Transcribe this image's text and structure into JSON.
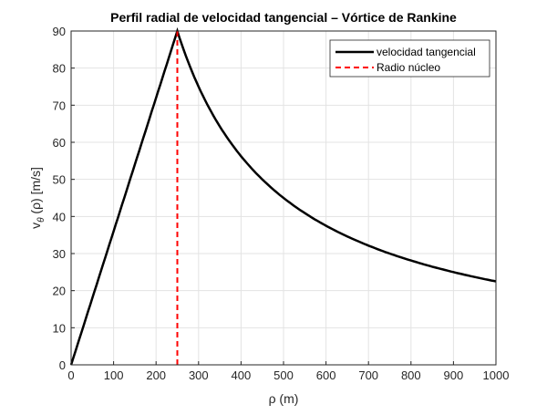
{
  "chart_data": {
    "type": "line",
    "title": "Perfil radial de velocidad tangencial – Vórtice de Rankine",
    "xlabel": "ρ (m)",
    "ylabel": {
      "main": "v",
      "sub": "θ",
      "rest": " (ρ) [m/s]"
    },
    "xlim": [
      0,
      1000
    ],
    "ylim": [
      0,
      90
    ],
    "xticks": [
      0,
      100,
      200,
      300,
      400,
      500,
      600,
      700,
      800,
      900,
      1000
    ],
    "yticks": [
      0,
      10,
      20,
      30,
      40,
      50,
      60,
      70,
      80,
      90
    ],
    "grid": true,
    "legend_position": "top-right",
    "series": [
      {
        "name": "velocidad tangencial",
        "color": "#000000",
        "style": "solid",
        "model": "rankine",
        "core_radius": 250,
        "vmax": 90,
        "x": [
          0,
          250,
          300,
          400,
          500,
          600,
          700,
          800,
          900,
          1000
        ],
        "values": [
          0,
          90,
          75,
          56.25,
          45,
          37.5,
          32.14,
          28.13,
          25,
          22.5
        ]
      },
      {
        "name": "Radio núcleo",
        "color": "#ff0000",
        "style": "dashed",
        "x": [
          250,
          250
        ],
        "values": [
          0,
          90
        ]
      }
    ]
  }
}
